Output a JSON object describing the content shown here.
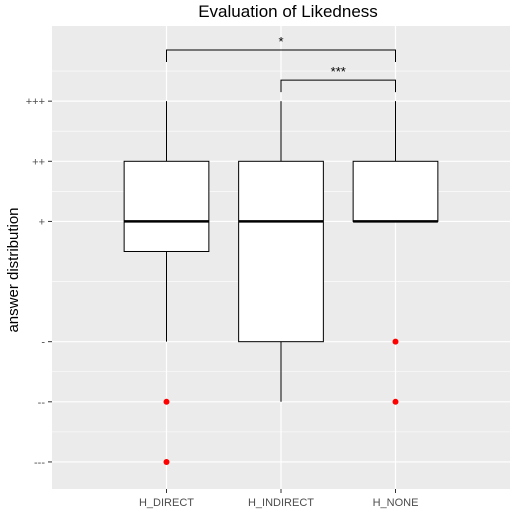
{
  "chart_data": {
    "type": "boxplot",
    "title": "Evaluation of Likedness",
    "ylabel": "answer distribution",
    "xlabel": "",
    "categories": [
      "H_DIRECT",
      "H_INDIRECT",
      "H_NONE"
    ],
    "y_ticks": [
      {
        "value": -3,
        "label": "---"
      },
      {
        "value": -2,
        "label": "--"
      },
      {
        "value": -1,
        "label": "-"
      },
      {
        "value": 1,
        "label": "+"
      },
      {
        "value": 2,
        "label": "++"
      },
      {
        "value": 3,
        "label": "+++"
      }
    ],
    "ylim": [
      -3.45,
      4.25
    ],
    "grid": true,
    "boxes": [
      {
        "category": "H_DIRECT",
        "whisker_low": -1,
        "q1": 0.5,
        "median": 1,
        "q3": 2,
        "whisker_high": 3,
        "outliers": [
          -2,
          -3
        ]
      },
      {
        "category": "H_INDIRECT",
        "whisker_low": -2,
        "q1": -1,
        "median": 1,
        "q3": 2,
        "whisker_high": 3,
        "outliers": []
      },
      {
        "category": "H_NONE",
        "whisker_low": 1,
        "q1": 1,
        "median": 1,
        "q3": 2,
        "whisker_high": 3,
        "outliers": [
          -1,
          -2
        ]
      }
    ],
    "significance": [
      {
        "from": "H_DIRECT",
        "to": "H_NONE",
        "label": "*",
        "level": 3.85
      },
      {
        "from": "H_INDIRECT",
        "to": "H_NONE",
        "label": "***",
        "level": 3.35
      }
    ],
    "colors": {
      "panel": "#ebebeb",
      "grid": "#ffffff",
      "box_fill": "#ffffff",
      "box_line": "#000000",
      "outlier": "#ff0000"
    }
  }
}
